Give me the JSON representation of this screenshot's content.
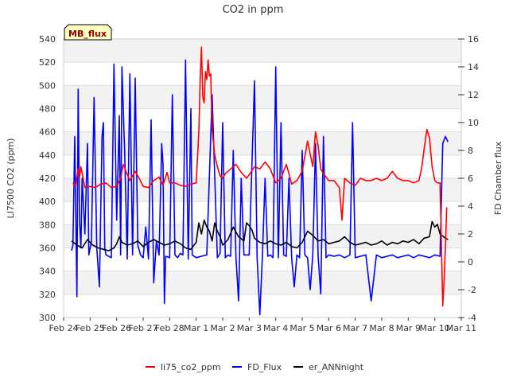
{
  "chart_data": {
    "type": "line",
    "title": "CO2 in ppm",
    "badge": "MB_flux",
    "ylabel_left": "LI7500 CO2 (ppm)",
    "ylabel_right": "FD Chamber flux",
    "x_ticks": [
      "Feb 24",
      "Feb 25",
      "Feb 26",
      "Feb 27",
      "Feb 28",
      "Mar 1",
      "Mar 2",
      "Mar 3",
      "Mar 4",
      "Mar 5",
      "Mar 6",
      "Mar 7",
      "Mar 8",
      "Mar 9",
      "Mar 10",
      "Mar 11"
    ],
    "xlim": [
      0,
      15
    ],
    "y_left": {
      "lim": [
        300,
        540
      ],
      "ticks": [
        300,
        320,
        340,
        360,
        380,
        400,
        420,
        440,
        460,
        480,
        500,
        520,
        540
      ]
    },
    "y_right": {
      "lim": [
        -4,
        16
      ],
      "ticks": [
        -4,
        -2,
        0,
        2,
        4,
        6,
        8,
        10,
        12,
        14,
        16
      ]
    },
    "grid": true,
    "legend_position": "bottom",
    "series": [
      {
        "name": "li75_co2_ppm",
        "color": "#ff0000",
        "axis": "left",
        "x": [
          0.35,
          0.45,
          0.55,
          0.6,
          0.65,
          0.8,
          1.0,
          1.2,
          1.4,
          1.6,
          1.8,
          2.0,
          2.15,
          2.25,
          2.35,
          2.5,
          2.7,
          2.85,
          3.0,
          3.2,
          3.4,
          3.6,
          3.75,
          3.9,
          4.0,
          4.2,
          4.4,
          4.6,
          4.8,
          5.0,
          5.1,
          5.15,
          5.2,
          5.25,
          5.3,
          5.35,
          5.4,
          5.45,
          5.5,
          5.55,
          5.6,
          5.7,
          5.8,
          5.9,
          6.0,
          6.1,
          6.3,
          6.5,
          6.7,
          6.9,
          7.0,
          7.2,
          7.4,
          7.6,
          7.8,
          8.0,
          8.2,
          8.4,
          8.5,
          8.6,
          8.8,
          9.0,
          9.2,
          9.4,
          9.5,
          9.6,
          9.7,
          9.8,
          10.0,
          10.2,
          10.4,
          10.5,
          10.6,
          10.8,
          11.0,
          11.2,
          11.4,
          11.6,
          11.8,
          12.0,
          12.2,
          12.4,
          12.6,
          12.8,
          13.0,
          13.2,
          13.4,
          13.5,
          13.6,
          13.7,
          13.8,
          13.9,
          14.0,
          14.1,
          14.2,
          14.3,
          14.35,
          14.4,
          14.45
        ],
        "y": [
          416,
          413,
          428,
          421,
          430,
          412,
          413,
          412,
          415,
          416,
          412,
          413,
          420,
          432,
          426,
          418,
          426,
          420,
          413,
          412,
          418,
          421,
          414,
          425,
          416,
          416,
          414,
          413,
          415,
          416,
          460,
          505,
          533,
          490,
          485,
          512,
          505,
          522,
          508,
          510,
          462,
          440,
          430,
          422,
          420,
          424,
          428,
          432,
          425,
          420,
          423,
          430,
          428,
          434,
          428,
          416,
          420,
          432,
          424,
          415,
          418,
          426,
          452,
          430,
          460,
          448,
          428,
          424,
          418,
          418,
          412,
          384,
          420,
          416,
          414,
          420,
          418,
          418,
          420,
          418,
          420,
          426,
          420,
          418,
          418,
          416,
          418,
          428,
          445,
          462,
          455,
          430,
          418,
          416,
          416,
          310,
          330,
          360,
          395
        ]
      },
      {
        "name": "FD_Flux",
        "color": "#0000ff",
        "axis": "right",
        "x": [
          0.3,
          0.35,
          0.42,
          0.5,
          0.55,
          0.6,
          0.65,
          0.7,
          0.8,
          0.9,
          0.95,
          1.05,
          1.15,
          1.25,
          1.35,
          1.45,
          1.5,
          1.55,
          1.6,
          1.8,
          1.9,
          2.0,
          2.1,
          2.15,
          2.2,
          2.3,
          2.4,
          2.5,
          2.6,
          2.7,
          2.8,
          2.9,
          3.0,
          3.1,
          3.2,
          3.3,
          3.4,
          3.5,
          3.6,
          3.7,
          3.75,
          3.8,
          3.85,
          4.0,
          4.1,
          4.2,
          4.3,
          4.4,
          4.5,
          4.6,
          4.7,
          4.8,
          4.85,
          5.0,
          5.2,
          5.4,
          5.6,
          5.8,
          5.9,
          6.0,
          6.1,
          6.2,
          6.3,
          6.4,
          6.5,
          6.6,
          6.7,
          6.8,
          7.0,
          7.2,
          7.3,
          7.4,
          7.5,
          7.6,
          7.7,
          7.8,
          7.9,
          8.0,
          8.1,
          8.2,
          8.3,
          8.4,
          8.5,
          8.6,
          8.7,
          8.8,
          8.9,
          9.0,
          9.1,
          9.2,
          9.3,
          9.4,
          9.5,
          9.6,
          9.7,
          9.8,
          9.9,
          10.0,
          10.2,
          10.4,
          10.6,
          10.8,
          10.9,
          11.0,
          11.2,
          11.4,
          11.6,
          11.8,
          12.0,
          12.2,
          12.4,
          12.6,
          12.8,
          13.0,
          13.2,
          13.4,
          13.6,
          13.8,
          14.0,
          14.2,
          14.3,
          14.4,
          14.5
        ],
        "y": [
          0.8,
          1.2,
          9.0,
          -2.5,
          12.4,
          3.0,
          1.0,
          6.0,
          2.0,
          8.5,
          0.5,
          1.5,
          11.8,
          1.0,
          -1.8,
          9.0,
          10.0,
          1.0,
          0.5,
          0.3,
          14.2,
          3.0,
          10.5,
          0.5,
          14.0,
          8.0,
          0.2,
          13.5,
          0.5,
          13.2,
          1.2,
          0.5,
          0.3,
          2.5,
          0.2,
          10.2,
          -1.5,
          1.5,
          0.5,
          8.5,
          7.0,
          -3.0,
          0.4,
          0.3,
          12.0,
          0.5,
          0.3,
          0.6,
          0.5,
          14.5,
          0.2,
          11.0,
          0.5,
          0.3,
          0.4,
          0.5,
          12.0,
          0.3,
          0.6,
          10.0,
          0.3,
          0.5,
          0.4,
          8.0,
          0.3,
          -2.8,
          6.0,
          0.5,
          0.5,
          13.0,
          0.3,
          -3.8,
          0.5,
          6.0,
          0.4,
          0.5,
          0.3,
          14.0,
          0.3,
          10.0,
          0.5,
          0.4,
          6.0,
          0.3,
          -1.8,
          0.5,
          0.3,
          8.0,
          0.5,
          0.3,
          -2.0,
          0.5,
          8.5,
          0.4,
          -2.3,
          9.0,
          0.3,
          0.5,
          0.4,
          0.5,
          0.3,
          0.5,
          10.0,
          0.3,
          0.4,
          0.5,
          -2.8,
          0.5,
          0.3,
          0.4,
          0.5,
          0.3,
          0.4,
          0.5,
          0.3,
          0.5,
          0.4,
          0.3,
          0.5,
          0.4,
          8.5,
          9.0,
          8.6
        ]
      },
      {
        "name": "er_ANNnight",
        "color": "#000000",
        "axis": "right",
        "x": [
          0.3,
          0.5,
          0.7,
          0.9,
          1.1,
          1.3,
          1.5,
          1.7,
          1.9,
          2.0,
          2.1,
          2.2,
          2.4,
          2.6,
          2.8,
          3.0,
          3.2,
          3.4,
          3.6,
          3.8,
          4.0,
          4.2,
          4.4,
          4.6,
          4.8,
          5.0,
          5.1,
          5.2,
          5.3,
          5.4,
          5.5,
          5.6,
          5.7,
          5.8,
          5.9,
          6.0,
          6.2,
          6.4,
          6.6,
          6.8,
          6.9,
          7.0,
          7.1,
          7.2,
          7.4,
          7.6,
          7.8,
          8.0,
          8.2,
          8.4,
          8.6,
          8.8,
          9.0,
          9.2,
          9.4,
          9.6,
          9.8,
          10.0,
          10.2,
          10.4,
          10.6,
          10.8,
          11.0,
          11.2,
          11.4,
          11.6,
          11.8,
          12.0,
          12.2,
          12.4,
          12.6,
          12.8,
          13.0,
          13.2,
          13.4,
          13.6,
          13.8,
          13.9,
          14.0,
          14.1,
          14.2,
          14.4,
          14.5
        ],
        "y": [
          1.5,
          1.2,
          1.0,
          1.6,
          1.2,
          1.0,
          0.9,
          0.8,
          1.0,
          1.3,
          1.8,
          1.4,
          1.2,
          1.3,
          1.5,
          1.1,
          1.4,
          1.6,
          1.4,
          1.2,
          1.3,
          1.5,
          1.3,
          1.0,
          0.9,
          1.4,
          2.8,
          2.0,
          3.0,
          2.5,
          2.2,
          1.5,
          2.8,
          2.2,
          1.8,
          1.2,
          1.6,
          2.5,
          1.8,
          1.5,
          2.8,
          2.6,
          2.3,
          1.7,
          1.4,
          1.3,
          1.5,
          1.3,
          1.2,
          1.4,
          1.1,
          1.0,
          1.4,
          2.2,
          1.9,
          1.5,
          1.6,
          1.3,
          1.4,
          1.5,
          1.8,
          1.4,
          1.2,
          1.3,
          1.4,
          1.2,
          1.3,
          1.5,
          1.2,
          1.4,
          1.3,
          1.5,
          1.4,
          1.6,
          1.3,
          1.7,
          1.8,
          2.9,
          2.5,
          2.7,
          2.0,
          1.7,
          1.6
        ]
      }
    ]
  }
}
